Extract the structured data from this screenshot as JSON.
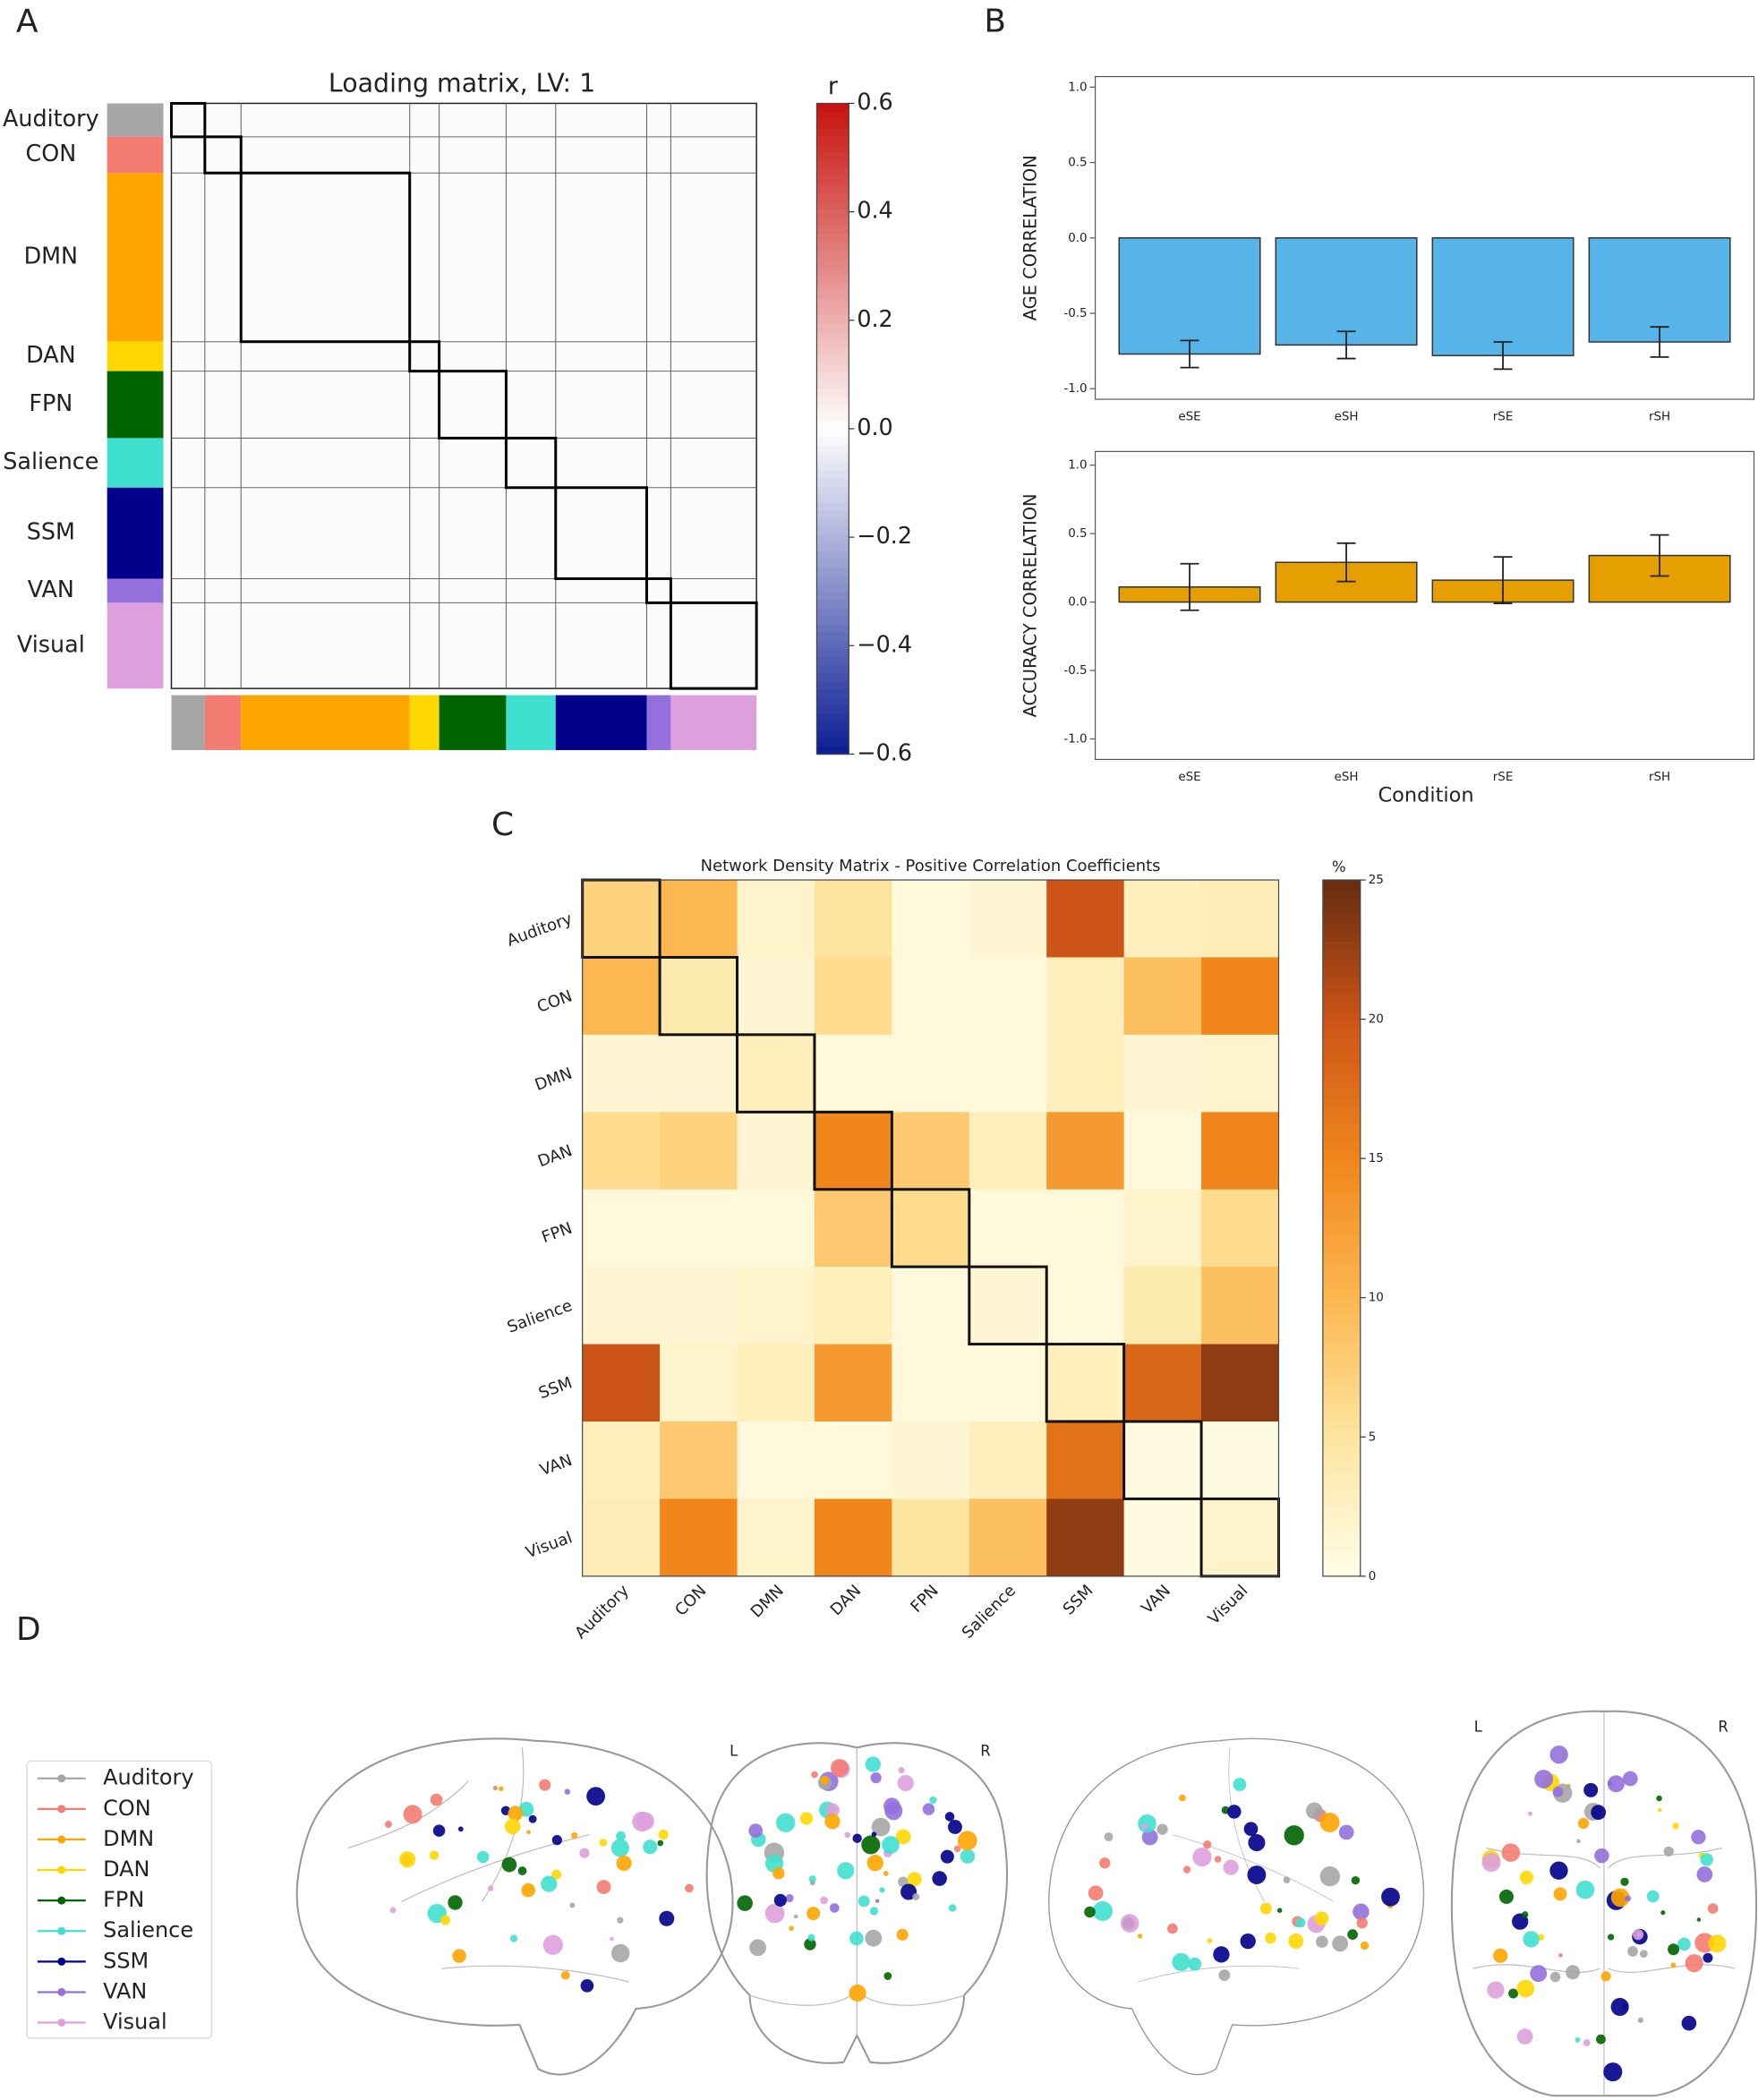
{
  "chart_data": [
    {
      "type": "loading_matrix",
      "panel_label": "A",
      "title": "Loading matrix, LV:  1",
      "networks": [
        "Auditory",
        "CON",
        "DMN",
        "DAN",
        "FPN",
        "Salience",
        "SSM",
        "VAN",
        "Visual"
      ],
      "network_colors": [
        "#a6a6a6",
        "#f47c72",
        "#ffa500",
        "#ffd700",
        "#006400",
        "#40e0d0",
        "#00008b",
        "#9370db",
        "#dda0dd"
      ],
      "network_sizes": [
        25,
        27,
        126,
        22,
        50,
        37,
        68,
        18,
        64
      ],
      "colorbar_label": "r",
      "clim": [
        -0.6,
        0.6
      ],
      "cticks": [
        {
          "value": -0.6,
          "label": "−0.6"
        },
        {
          "value": -0.4,
          "label": "−0.4"
        },
        {
          "value": -0.2,
          "label": "−0.2"
        },
        {
          "value": 0,
          "label": "0.0"
        },
        0.2,
        0.4,
        0.6
      ],
      "colormap": [
        "#0b1c94",
        "#ffffff",
        "#c8120e"
      ]
    },
    {
      "type": "bar",
      "panel_label": "B",
      "ylabel": "AGE CORRELATION",
      "categories": [
        "eSE",
        "eSH",
        "rSE",
        "rSH"
      ],
      "values": [
        -0.77,
        -0.71,
        -0.78,
        -0.69
      ],
      "errors": [
        0.09,
        0.09,
        0.09,
        0.1
      ],
      "color": "#56b4e9",
      "ylim": [
        -1.07,
        1.07
      ],
      "yticks": [
        {
          "value": -1,
          "label": "-1.0"
        },
        -0.5,
        {
          "value": 0,
          "label": "0.0"
        },
        0.5,
        {
          "value": 1,
          "label": "1.0"
        }
      ]
    },
    {
      "type": "bar",
      "ylabel": "ACCURACY CORRELATION",
      "xlabel": "Condition",
      "categories": [
        "eSE",
        "eSH",
        "rSE",
        "rSH"
      ],
      "values": [
        0.11,
        0.29,
        0.16,
        0.34
      ],
      "errors": [
        0.17,
        0.14,
        0.17,
        0.15
      ],
      "color": "#e69f00",
      "ylim": [
        -1.15,
        1.1
      ],
      "yticks": [
        {
          "value": -1,
          "label": "-1.0"
        },
        -0.5,
        {
          "value": 0,
          "label": "0.0"
        },
        0.5,
        {
          "value": 1,
          "label": "1.0"
        }
      ]
    },
    {
      "type": "heatmap",
      "panel_label": "C",
      "title": "Network Density Matrix - Positive Correlation Coefficients",
      "categories": [
        "Auditory",
        "CON",
        "DMN",
        "DAN",
        "FPN",
        "Salience",
        "SSM",
        "VAN",
        "Visual"
      ],
      "values": [
        [
          7,
          10,
          2,
          5,
          1,
          1.5,
          20,
          3,
          3.5
        ],
        [
          10,
          4,
          1.5,
          6,
          1,
          1,
          3,
          9,
          15
        ],
        [
          1.5,
          1.5,
          3,
          1,
          1,
          1,
          3,
          1.5,
          2
        ],
        [
          6,
          7,
          1.5,
          15,
          8,
          3,
          13,
          1,
          15
        ],
        [
          1,
          1,
          1,
          8,
          6,
          1,
          1,
          2,
          6
        ],
        [
          1.5,
          1.5,
          2,
          3,
          1,
          1.5,
          1,
          4,
          9
        ],
        [
          20,
          2,
          3,
          13,
          1,
          1,
          3,
          18,
          23
        ],
        [
          3,
          8,
          1,
          1,
          1.5,
          3,
          17,
          0.5,
          0.5
        ],
        [
          3.5,
          15,
          2,
          15,
          5,
          9,
          23,
          0.5,
          2
        ]
      ],
      "colorbar_label": "%",
      "clim": [
        0,
        25
      ],
      "cticks": [
        0,
        5,
        10,
        15,
        20,
        25
      ],
      "colormap": [
        "#fffde8",
        "#fde5a0",
        "#fdb750",
        "#f0861c",
        "#cc5417",
        "#662c10"
      ]
    }
  ],
  "brain_figure": {
    "panel_label": "D",
    "legend": [
      {
        "name": "Auditory",
        "color": "#a6a6a6"
      },
      {
        "name": "CON",
        "color": "#f47c72"
      },
      {
        "name": "DMN",
        "color": "#ffa500"
      },
      {
        "name": "DAN",
        "color": "#ffd700"
      },
      {
        "name": "FPN",
        "color": "#006400"
      },
      {
        "name": "Salience",
        "color": "#40e0d0"
      },
      {
        "name": "SSM",
        "color": "#00008b"
      },
      {
        "name": "VAN",
        "color": "#9370db"
      },
      {
        "name": "Visual",
        "color": "#dda0dd"
      }
    ],
    "view_labels": [
      "L",
      "R",
      "L",
      "R"
    ]
  }
}
